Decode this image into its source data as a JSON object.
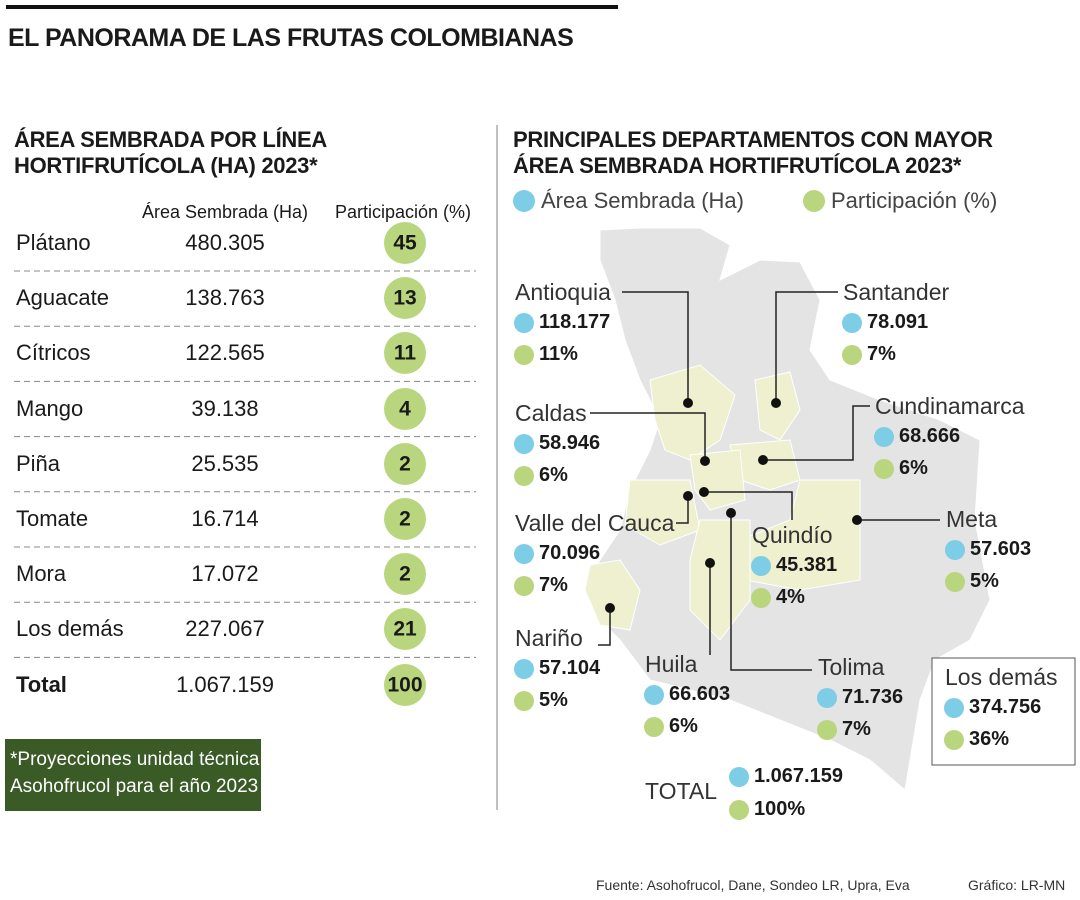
{
  "title": "EL PANORAMA DE LAS FRUTAS COLOMBIANAS",
  "table": {
    "title": [
      "ÁREA SEMBRADA POR LÍNEA",
      "HORTIFRUTÍCOLA (HA) 2023*"
    ],
    "columns": [
      "Área Sembrada (Ha)",
      "Participación (%)"
    ],
    "rows": [
      [
        "Plátano",
        "480.305",
        "45"
      ],
      [
        "Aguacate",
        "138.763",
        "13"
      ],
      [
        "Cítricos",
        "122.565",
        "11"
      ],
      [
        "Mango",
        "39.138",
        "4"
      ],
      [
        "Piña",
        "25.535",
        "2"
      ],
      [
        "Tomate",
        "16.714",
        "2"
      ],
      [
        "Mora",
        "17.072",
        "2"
      ],
      [
        "Los demás",
        "227.067",
        "21"
      ],
      [
        "Total",
        "1.067.159",
        "100"
      ]
    ]
  },
  "note": [
    "*Proyecciones unidad técnica",
    "Asohofrucol para el año 2023"
  ],
  "map": {
    "title": [
      "PRINCIPALES DEPARTAMENTOS CON MAYOR",
      "ÁREA SEMBRADA HORTIFRUTÍCOLA 2023*"
    ],
    "legend": [
      "Área Sembrada (Ha)",
      "Participación (%)"
    ],
    "departments": [
      {
        "name": "Antioquia",
        "area": "118.177",
        "share": "11%"
      },
      {
        "name": "Santander",
        "area": "78.091",
        "share": "7%"
      },
      {
        "name": "Caldas",
        "area": "58.946",
        "share": "6%"
      },
      {
        "name": "Cundinamarca",
        "area": "68.666",
        "share": "6%"
      },
      {
        "name": "Valle del Cauca",
        "area": "70.096",
        "share": "7%"
      },
      {
        "name": "Quindío",
        "area": "45.381",
        "share": "4%"
      },
      {
        "name": "Meta",
        "area": "57.603",
        "share": "5%"
      },
      {
        "name": "Nariño",
        "area": "57.104",
        "share": "5%"
      },
      {
        "name": "Huila",
        "area": "66.603",
        "share": "6%"
      },
      {
        "name": "Tolima",
        "area": "71.736",
        "share": "7%"
      }
    ],
    "others": {
      "name": "Los demás",
      "area": "374.756",
      "share": "36%"
    },
    "total": {
      "name": "TOTAL",
      "area": "1.067.159",
      "share": "100%"
    }
  },
  "source": "Fuente: Asohofrucol, Dane, Sondeo LR, Upra, Eva",
  "credit": "Gráfico: LR-MN"
}
